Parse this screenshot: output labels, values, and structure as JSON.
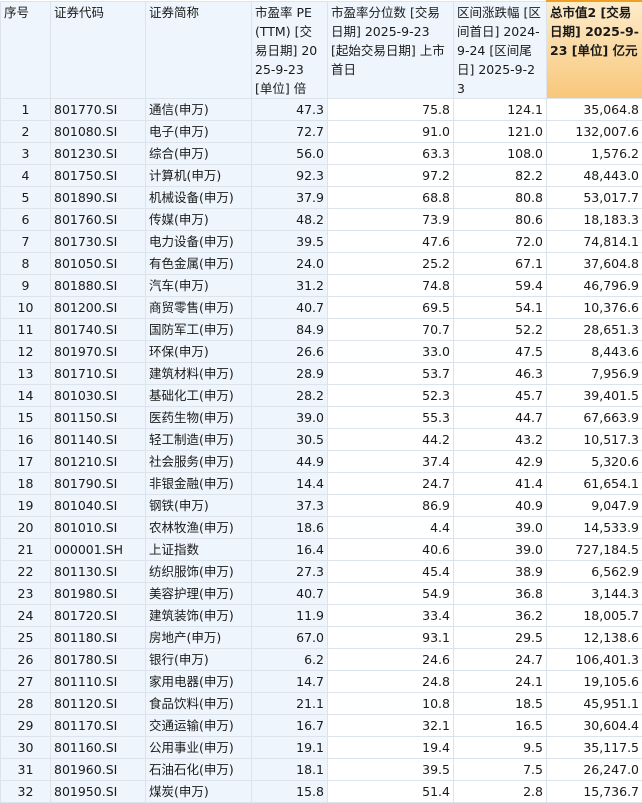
{
  "table": {
    "headers": [
      "序号",
      "证券代码",
      "证券简称",
      "市盈率 PE(TTM) [交易日期] 2025-9-23 [单位] 倍",
      "市盈率分位数 [交易日期] 2025-9-23 [起始交易日期] 上市首日",
      "区间涨跌幅 [区间首日] 2024-9-24 [区间尾日] 2025-9-23",
      "总市值2 [交易日期] 2025-9-23 [单位] 亿元"
    ],
    "highlight_color": "#f8c77a",
    "rows": [
      [
        "1",
        "801770.SI",
        "通信(申万)",
        "47.3",
        "75.8",
        "124.1",
        "35,064.8"
      ],
      [
        "2",
        "801080.SI",
        "电子(申万)",
        "72.7",
        "91.0",
        "121.0",
        "132,007.6"
      ],
      [
        "3",
        "801230.SI",
        "综合(申万)",
        "56.0",
        "63.3",
        "108.0",
        "1,576.2"
      ],
      [
        "4",
        "801750.SI",
        "计算机(申万)",
        "92.3",
        "97.2",
        "82.2",
        "48,443.0"
      ],
      [
        "5",
        "801890.SI",
        "机械设备(申万)",
        "37.9",
        "68.8",
        "80.8",
        "53,017.7"
      ],
      [
        "6",
        "801760.SI",
        "传媒(申万)",
        "48.2",
        "73.9",
        "80.6",
        "18,183.3"
      ],
      [
        "7",
        "801730.SI",
        "电力设备(申万)",
        "39.5",
        "47.6",
        "72.0",
        "74,814.1"
      ],
      [
        "8",
        "801050.SI",
        "有色金属(申万)",
        "24.0",
        "25.2",
        "67.1",
        "37,604.8"
      ],
      [
        "9",
        "801880.SI",
        "汽车(申万)",
        "31.2",
        "74.8",
        "59.4",
        "46,796.9"
      ],
      [
        "10",
        "801200.SI",
        "商贸零售(申万)",
        "40.7",
        "69.5",
        "54.1",
        "10,376.6"
      ],
      [
        "11",
        "801740.SI",
        "国防军工(申万)",
        "84.9",
        "70.7",
        "52.2",
        "28,651.3"
      ],
      [
        "12",
        "801970.SI",
        "环保(申万)",
        "26.6",
        "33.0",
        "47.5",
        "8,443.6"
      ],
      [
        "13",
        "801710.SI",
        "建筑材料(申万)",
        "28.9",
        "53.7",
        "46.3",
        "7,956.9"
      ],
      [
        "14",
        "801030.SI",
        "基础化工(申万)",
        "28.2",
        "52.3",
        "45.7",
        "39,401.5"
      ],
      [
        "15",
        "801150.SI",
        "医药生物(申万)",
        "39.0",
        "55.3",
        "44.7",
        "67,663.9"
      ],
      [
        "16",
        "801140.SI",
        "轻工制造(申万)",
        "30.5",
        "44.2",
        "43.2",
        "10,517.3"
      ],
      [
        "17",
        "801210.SI",
        "社会服务(申万)",
        "44.9",
        "37.4",
        "42.9",
        "5,320.6"
      ],
      [
        "18",
        "801790.SI",
        "非银金融(申万)",
        "14.4",
        "24.7",
        "41.4",
        "61,654.1"
      ],
      [
        "19",
        "801040.SI",
        "钢铁(申万)",
        "37.3",
        "86.9",
        "40.9",
        "9,047.9"
      ],
      [
        "20",
        "801010.SI",
        "农林牧渔(申万)",
        "18.6",
        "4.4",
        "39.0",
        "14,533.9"
      ],
      [
        "21",
        "000001.SH",
        "上证指数",
        "16.4",
        "40.6",
        "39.0",
        "727,184.5"
      ],
      [
        "22",
        "801130.SI",
        "纺织服饰(申万)",
        "27.3",
        "45.4",
        "38.9",
        "6,562.9"
      ],
      [
        "23",
        "801980.SI",
        "美容护理(申万)",
        "40.7",
        "54.9",
        "36.8",
        "3,144.3"
      ],
      [
        "24",
        "801720.SI",
        "建筑装饰(申万)",
        "11.9",
        "33.4",
        "36.2",
        "18,005.7"
      ],
      [
        "25",
        "801180.SI",
        "房地产(申万)",
        "67.0",
        "93.1",
        "29.5",
        "12,138.6"
      ],
      [
        "26",
        "801780.SI",
        "银行(申万)",
        "6.2",
        "24.6",
        "24.7",
        "106,401.3"
      ],
      [
        "27",
        "801110.SI",
        "家用电器(申万)",
        "14.7",
        "24.8",
        "24.1",
        "19,105.6"
      ],
      [
        "28",
        "801120.SI",
        "食品饮料(申万)",
        "21.1",
        "10.8",
        "18.5",
        "45,951.1"
      ],
      [
        "29",
        "801170.SI",
        "交通运输(申万)",
        "16.7",
        "32.1",
        "16.5",
        "30,604.4"
      ],
      [
        "30",
        "801160.SI",
        "公用事业(申万)",
        "19.1",
        "19.4",
        "9.5",
        "35,117.5"
      ],
      [
        "31",
        "801960.SI",
        "石油石化(申万)",
        "18.1",
        "39.5",
        "7.5",
        "26,247.0"
      ],
      [
        "32",
        "801950.SI",
        "煤炭(申万)",
        "15.8",
        "51.4",
        "2.8",
        "15,736.7"
      ]
    ]
  }
}
